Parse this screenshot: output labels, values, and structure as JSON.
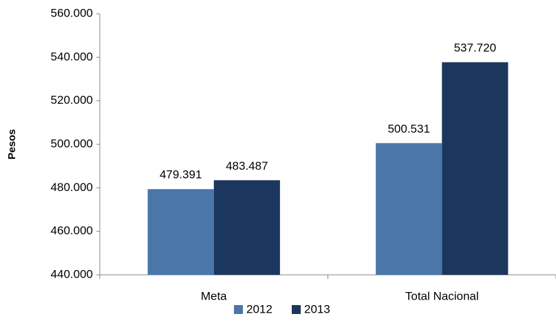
{
  "chart_data": {
    "type": "bar",
    "y_label": "Pesos",
    "categories": [
      "Meta",
      "Total Nacional"
    ],
    "series": [
      {
        "name": "2012",
        "color": "#4a76aa",
        "values": [
          479391,
          500531
        ],
        "value_labels": [
          "479.391",
          "500.531"
        ]
      },
      {
        "name": "2013",
        "color": "#1c375e",
        "values": [
          483487,
          537720
        ],
        "value_labels": [
          "483.487",
          "537.720"
        ]
      }
    ],
    "ylim": [
      440000,
      560000
    ],
    "yticks": [
      {
        "value": 440000,
        "label": "440.000"
      },
      {
        "value": 460000,
        "label": "460.000"
      },
      {
        "value": 480000,
        "label": "480.000"
      },
      {
        "value": 500000,
        "label": "500.000"
      },
      {
        "value": 520000,
        "label": "520.000"
      },
      {
        "value": 540000,
        "label": "540.000"
      },
      {
        "value": 560000,
        "label": "560.000"
      }
    ],
    "grid": false,
    "legend": "bottom"
  }
}
